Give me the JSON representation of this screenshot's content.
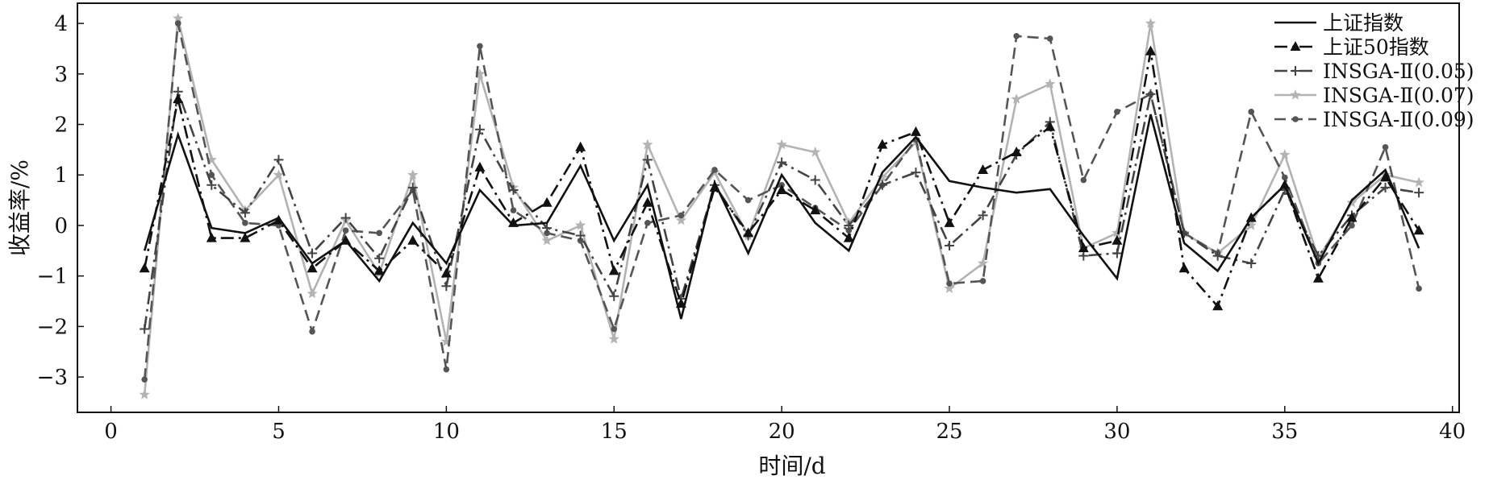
{
  "chart_data": {
    "type": "line",
    "title": "",
    "xlabel": "时间/d",
    "ylabel": "收益率/%",
    "xlim": [
      -1,
      40.2
    ],
    "ylim": [
      -3.7,
      4.4
    ],
    "xticks": [
      0,
      5,
      10,
      15,
      20,
      25,
      30,
      35,
      40
    ],
    "yticks": [
      -3,
      -2,
      -1,
      0,
      1,
      2,
      3,
      4
    ],
    "grid": false,
    "legend_position": "top-right",
    "x": [
      1,
      2,
      3,
      4,
      5,
      6,
      7,
      8,
      9,
      10,
      11,
      12,
      13,
      14,
      15,
      16,
      17,
      18,
      19,
      20,
      21,
      22,
      23,
      24,
      25,
      26,
      27,
      28,
      29,
      30,
      31,
      32,
      33,
      34,
      35,
      36,
      37,
      38,
      39
    ],
    "series": [
      {
        "name": "上证指数",
        "color": "#111111",
        "dash": "solid",
        "marker": "none",
        "values": [
          -0.5,
          1.8,
          -0.05,
          -0.15,
          0.15,
          -0.75,
          -0.3,
          -1.1,
          0.05,
          -0.75,
          0.7,
          0.0,
          0.05,
          1.18,
          -0.3,
          0.8,
          -1.85,
          0.85,
          -0.55,
          1.0,
          0.05,
          -0.5,
          1.05,
          1.75,
          0.88,
          0.75,
          0.65,
          0.72,
          -0.2,
          -1.05,
          2.2,
          -0.35,
          -0.9,
          0.15,
          0.8,
          -0.75,
          0.5,
          1.1,
          -0.45
        ]
      },
      {
        "name": "上证50指数",
        "color": "#111111",
        "dash": "dashdot",
        "marker": "triangle",
        "values": [
          -0.85,
          2.5,
          -0.25,
          -0.25,
          0.1,
          -0.85,
          -0.3,
          -0.9,
          -0.3,
          -0.95,
          1.15,
          0.05,
          0.45,
          1.55,
          -0.9,
          0.45,
          -1.55,
          0.75,
          -0.15,
          0.7,
          0.3,
          -0.25,
          1.6,
          1.85,
          0.05,
          1.1,
          1.45,
          1.95,
          -0.45,
          -0.3,
          3.45,
          -0.85,
          -1.6,
          0.15,
          0.8,
          -1.05,
          0.15,
          0.95,
          -0.1
        ]
      },
      {
        "name": "INSGA-Ⅱ(0.05)",
        "color": "#444444",
        "dash": "dashdot",
        "marker": "plus",
        "values": [
          -2.05,
          2.65,
          0.8,
          0.25,
          1.3,
          -0.55,
          0.15,
          -0.65,
          0.75,
          -1.2,
          1.9,
          0.7,
          -0.05,
          -0.2,
          -1.4,
          1.3,
          -1.45,
          0.8,
          -0.2,
          1.25,
          0.9,
          0.0,
          0.8,
          1.05,
          -0.4,
          0.2,
          1.4,
          2.05,
          -0.6,
          -0.55,
          2.6,
          -0.15,
          -0.6,
          -0.75,
          0.7,
          -0.6,
          0.2,
          0.75,
          0.65
        ]
      },
      {
        "name": "INSGA-Ⅱ(0.07)",
        "color": "#b3b3b3",
        "dash": "solid",
        "marker": "star",
        "values": [
          -3.35,
          4.1,
          1.3,
          0.3,
          1.0,
          -1.35,
          0.1,
          -0.95,
          1.0,
          -2.3,
          3.0,
          0.75,
          -0.3,
          0.0,
          -2.25,
          1.6,
          0.1,
          1.05,
          -0.2,
          1.6,
          1.45,
          0.05,
          0.95,
          1.65,
          -1.25,
          -0.75,
          2.5,
          2.8,
          -0.45,
          -0.15,
          4.0,
          -0.15,
          -0.55,
          0.0,
          1.4,
          -0.65,
          0.45,
          1.0,
          0.85
        ]
      },
      {
        "name": "INSGA-Ⅱ(0.09)",
        "color": "#555555",
        "dash": "dashed",
        "marker": "circle",
        "values": [
          -3.05,
          4.0,
          1.0,
          0.05,
          0.0,
          -2.1,
          -0.1,
          -0.15,
          0.7,
          -2.85,
          3.55,
          0.3,
          -0.15,
          -0.3,
          -2.05,
          0.05,
          0.2,
          1.1,
          0.5,
          0.8,
          0.35,
          -0.1,
          0.8,
          1.7,
          -1.15,
          -1.1,
          3.75,
          3.7,
          0.9,
          2.25,
          2.6,
          -0.15,
          -0.55,
          2.25,
          0.95,
          -0.75,
          0.0,
          1.55,
          -1.25
        ]
      }
    ]
  }
}
